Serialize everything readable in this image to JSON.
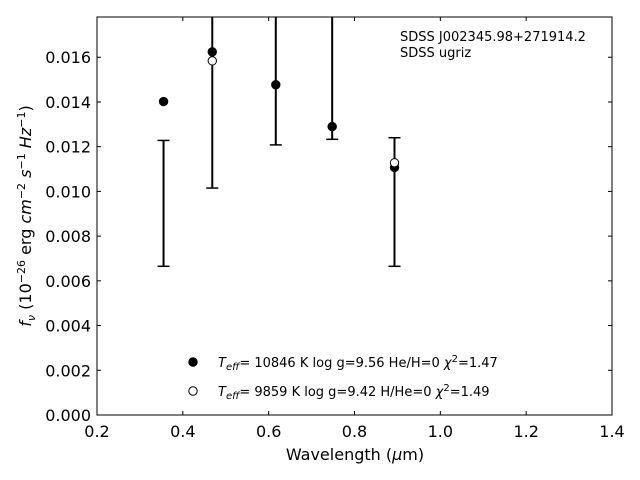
{
  "chart_data": {
    "type": "scatter",
    "title": "",
    "xlabel": "Wavelength (μm)",
    "ylabel": "fν (10⁻²⁶ erg cm⁻² s⁻¹ Hz⁻¹)",
    "xlim": [
      0.2,
      1.4
    ],
    "ylim": [
      0.0,
      0.0178
    ],
    "xticks": [
      "0.2",
      "0.4",
      "0.6",
      "0.8",
      "1.0",
      "1.2",
      "1.4"
    ],
    "xtick_values": [
      0.2,
      0.4,
      0.6,
      0.8,
      1.0,
      1.2,
      1.4
    ],
    "yticks": [
      "0.000",
      "0.002",
      "0.004",
      "0.006",
      "0.008",
      "0.010",
      "0.012",
      "0.014",
      "0.016"
    ],
    "ytick_values": [
      0.0,
      0.002,
      0.004,
      0.006,
      0.008,
      0.01,
      0.012,
      0.014,
      0.016
    ],
    "grid": false,
    "annotation_lines": [
      "SDSS J002345.98+271914.2",
      "SDSS ugriz"
    ],
    "observed": {
      "x": [
        0.3551,
        0.4686,
        0.6166,
        0.748,
        0.8932
      ],
      "y_low": [
        0.00665,
        0.01015,
        0.01208,
        0.01233,
        0.00665
      ],
      "y_high": [
        0.01228,
        0.0178,
        0.0178,
        0.0178,
        0.0124
      ]
    },
    "series": [
      {
        "marker": "filled-circle",
        "legend": "T_eff= 10846 K  log g=9.56  He/H=0  χ²=1.47",
        "x": [
          0.3551,
          0.4686,
          0.6166,
          0.748,
          0.8932
        ],
        "y": [
          0.01402,
          0.01624,
          0.01477,
          0.0129,
          0.01107
        ]
      },
      {
        "marker": "open-circle",
        "legend": "T_eff=  9859 K  log g=9.42  H/He=0  χ²=1.49",
        "x": [
          0.4686,
          0.8932
        ],
        "y": [
          0.01584,
          0.01128
        ]
      }
    ]
  }
}
